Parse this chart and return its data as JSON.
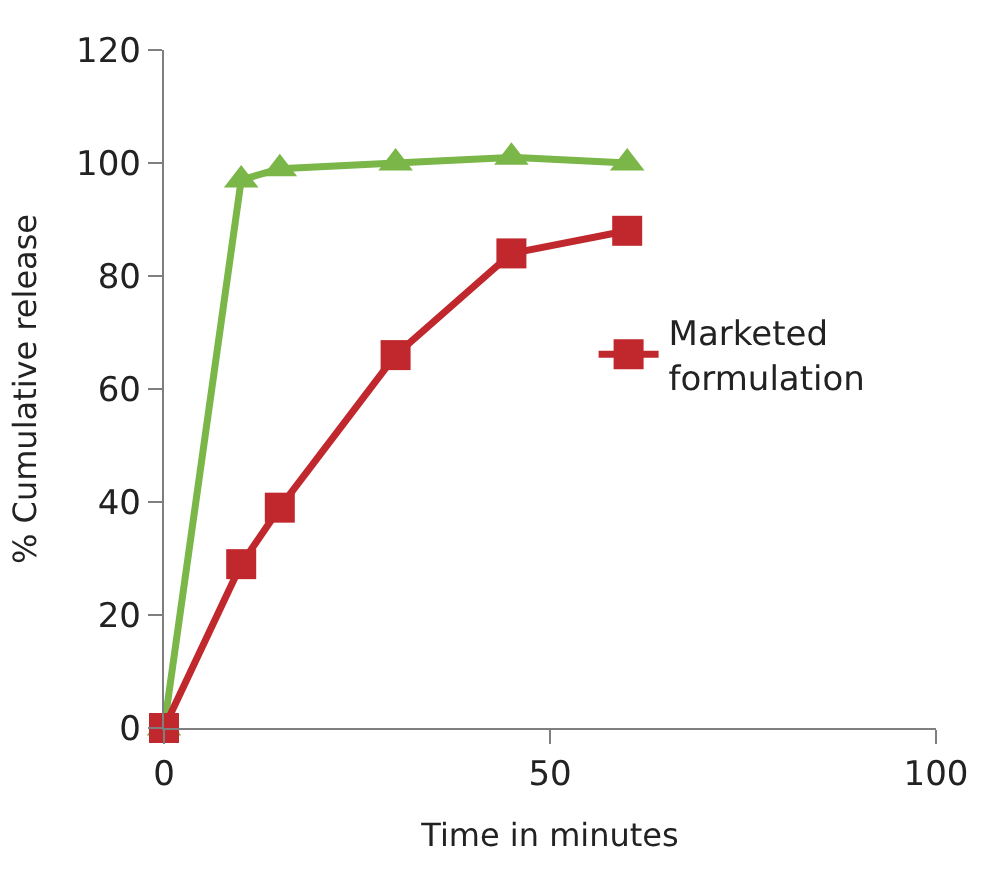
{
  "chart_data": {
    "type": "line",
    "xlabel": "Time in minutes",
    "ylabel": "% Cumulative release",
    "x": [
      0,
      10,
      15,
      30,
      45,
      60
    ],
    "series": [
      {
        "color": "#7ab648",
        "marker": "triangle",
        "values": [
          0,
          97,
          99,
          100,
          101,
          100
        ]
      },
      {
        "name": "Marketed formulation",
        "color": "#c0282d",
        "marker": "square",
        "values": [
          0,
          29,
          39,
          66,
          84,
          88
        ]
      }
    ],
    "xlim": [
      0,
      100
    ],
    "xticks": [
      0,
      50,
      100
    ],
    "ylim": [
      0,
      120
    ],
    "yticks": [
      0,
      20,
      40,
      60,
      80,
      100,
      120
    ],
    "legend": "right",
    "line_style": "solid"
  }
}
